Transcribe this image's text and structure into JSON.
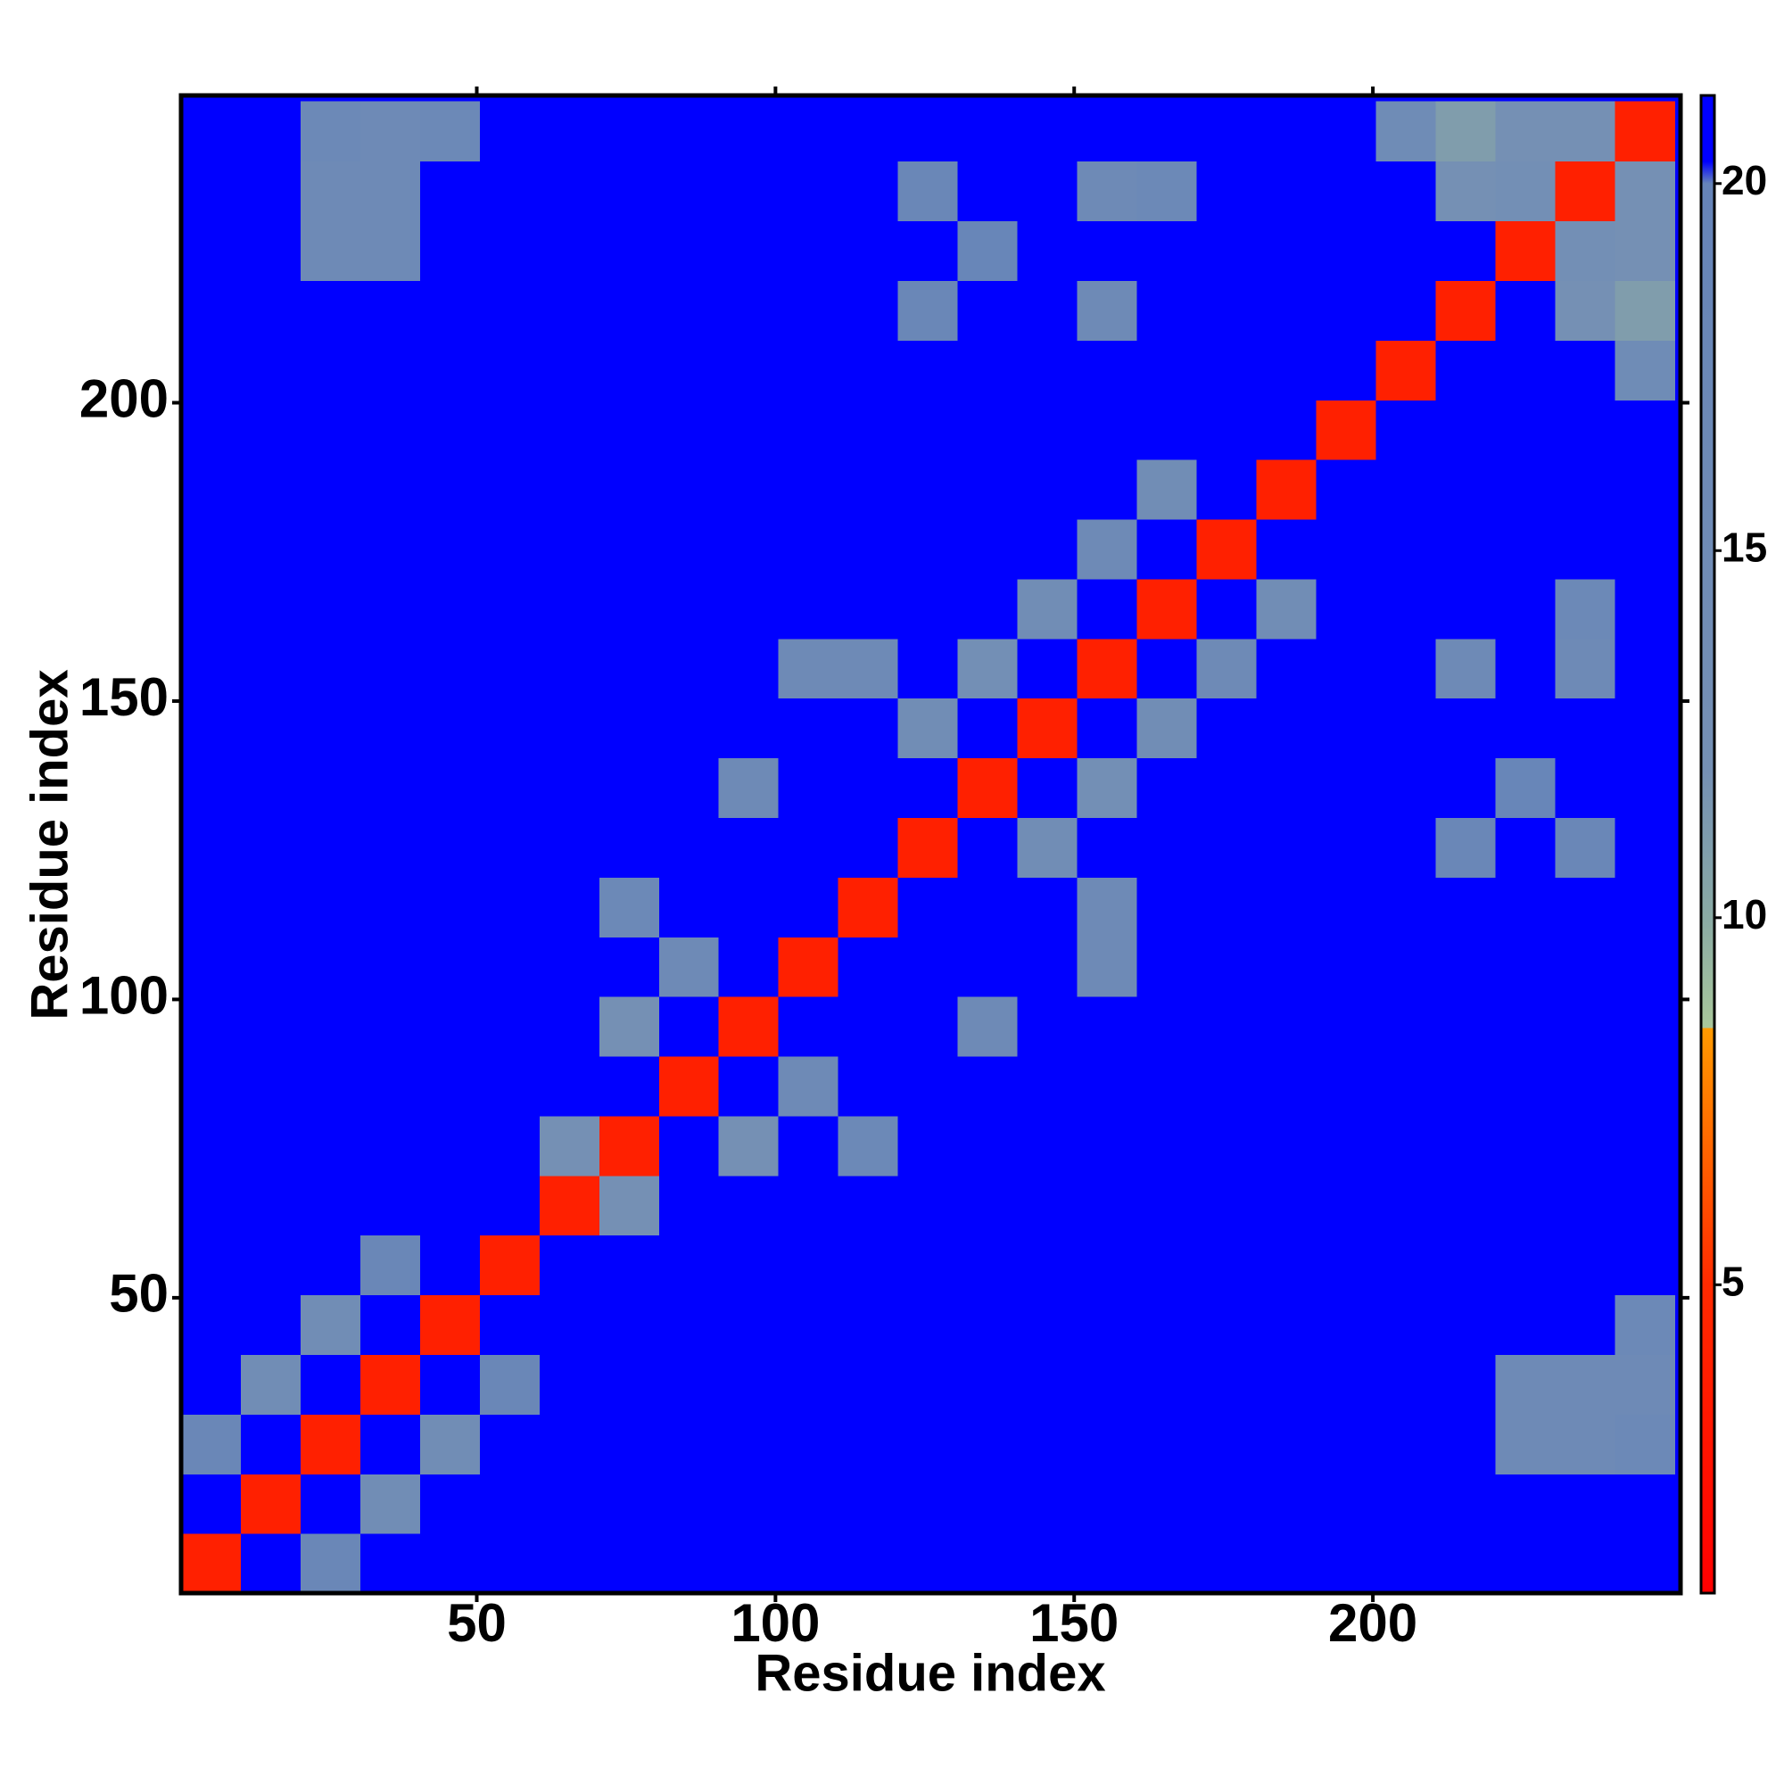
{
  "chart_data": {
    "type": "heatmap",
    "xlabel": "Residue index",
    "ylabel": "Residue index",
    "x": [
      5.5,
      15.5,
      25.5,
      35.5,
      45.5,
      55.5,
      65.5,
      75.5,
      85.5,
      95.5,
      105.5,
      115.5,
      125.5,
      135.5,
      145.5,
      155.5,
      165.5,
      175.5,
      185.5,
      195.5,
      205.5,
      215.5,
      225.5,
      235.5,
      245.5
    ],
    "y": [
      5.5,
      15.5,
      25.5,
      35.5,
      45.5,
      55.5,
      65.5,
      75.5,
      85.5,
      95.5,
      105.5,
      115.5,
      125.5,
      135.5,
      145.5,
      155.5,
      165.5,
      175.5,
      185.5,
      195.5,
      205.5,
      215.5,
      225.5,
      235.5,
      245.5
    ],
    "z": [
      [
        4,
        21,
        18,
        21,
        21,
        21,
        21,
        21,
        21,
        21,
        21,
        21,
        21,
        21,
        21,
        21,
        21,
        21,
        21,
        21,
        21,
        21,
        21,
        21,
        21
      ],
      [
        21,
        4,
        21,
        14,
        21,
        21,
        21,
        21,
        21,
        21,
        21,
        21,
        21,
        21,
        21,
        21,
        21,
        21,
        21,
        21,
        21,
        21,
        21,
        21,
        21
      ],
      [
        18,
        21,
        4,
        21,
        14,
        21,
        21,
        21,
        21,
        21,
        21,
        21,
        21,
        21,
        21,
        21,
        21,
        21,
        21,
        21,
        21,
        21,
        16,
        16,
        17
      ],
      [
        21,
        14,
        21,
        4,
        21,
        18,
        21,
        21,
        21,
        21,
        21,
        21,
        21,
        21,
        21,
        21,
        21,
        21,
        21,
        21,
        21,
        21,
        16,
        16,
        16
      ],
      [
        21,
        21,
        14,
        21,
        4,
        21,
        21,
        21,
        21,
        21,
        21,
        21,
        21,
        21,
        21,
        21,
        21,
        21,
        21,
        21,
        21,
        21,
        21,
        21,
        17
      ],
      [
        21,
        21,
        21,
        18,
        21,
        4,
        21,
        21,
        21,
        21,
        21,
        21,
        21,
        21,
        21,
        21,
        21,
        21,
        21,
        21,
        21,
        21,
        21,
        21,
        21
      ],
      [
        21,
        21,
        21,
        21,
        21,
        21,
        4,
        12,
        21,
        21,
        21,
        21,
        21,
        21,
        21,
        21,
        21,
        21,
        21,
        21,
        21,
        21,
        21,
        21,
        21
      ],
      [
        21,
        21,
        21,
        21,
        21,
        21,
        12,
        4,
        21,
        12,
        21,
        17,
        21,
        21,
        21,
        21,
        21,
        21,
        21,
        21,
        21,
        21,
        21,
        21,
        21
      ],
      [
        21,
        21,
        21,
        21,
        21,
        21,
        21,
        21,
        4,
        21,
        16,
        21,
        21,
        21,
        21,
        21,
        21,
        21,
        21,
        21,
        21,
        21,
        21,
        21,
        21
      ],
      [
        21,
        21,
        21,
        21,
        21,
        21,
        21,
        12,
        21,
        4,
        21,
        21,
        21,
        16,
        21,
        21,
        21,
        21,
        21,
        21,
        21,
        21,
        21,
        21,
        21
      ],
      [
        21,
        21,
        21,
        21,
        21,
        21,
        21,
        21,
        16,
        21,
        4,
        21,
        21,
        21,
        21,
        16,
        21,
        21,
        21,
        21,
        21,
        21,
        21,
        21,
        21
      ],
      [
        21,
        21,
        21,
        21,
        21,
        21,
        21,
        17,
        21,
        21,
        21,
        4,
        21,
        21,
        21,
        16,
        21,
        21,
        21,
        21,
        21,
        21,
        21,
        21,
        21
      ],
      [
        21,
        21,
        21,
        21,
        21,
        21,
        21,
        21,
        21,
        21,
        21,
        21,
        4,
        21,
        14,
        21,
        21,
        21,
        21,
        21,
        21,
        18,
        21,
        18,
        21
      ],
      [
        21,
        21,
        21,
        21,
        21,
        21,
        21,
        21,
        21,
        16,
        21,
        21,
        21,
        4,
        21,
        13,
        21,
        21,
        21,
        21,
        21,
        21,
        19,
        21,
        21
      ],
      [
        21,
        21,
        21,
        21,
        21,
        21,
        21,
        21,
        21,
        21,
        21,
        21,
        14,
        21,
        4,
        21,
        14,
        21,
        21,
        21,
        21,
        21,
        21,
        21,
        21
      ],
      [
        21,
        21,
        21,
        21,
        21,
        21,
        21,
        21,
        21,
        21,
        16,
        16,
        21,
        13,
        21,
        4,
        21,
        16,
        21,
        21,
        21,
        16,
        21,
        16,
        21
      ],
      [
        21,
        21,
        21,
        21,
        21,
        21,
        21,
        21,
        21,
        21,
        21,
        21,
        21,
        21,
        14,
        21,
        4,
        21,
        14,
        21,
        21,
        21,
        21,
        17,
        21
      ],
      [
        21,
        21,
        21,
        21,
        21,
        21,
        21,
        21,
        21,
        21,
        21,
        21,
        21,
        21,
        21,
        16,
        21,
        4,
        21,
        21,
        21,
        21,
        21,
        21,
        21
      ],
      [
        21,
        21,
        21,
        21,
        21,
        21,
        21,
        21,
        21,
        21,
        21,
        21,
        21,
        21,
        21,
        21,
        14,
        21,
        4,
        21,
        21,
        21,
        21,
        21,
        21
      ],
      [
        21,
        21,
        21,
        21,
        21,
        21,
        21,
        21,
        21,
        21,
        21,
        21,
        21,
        21,
        21,
        21,
        21,
        21,
        21,
        4,
        21,
        21,
        21,
        21,
        21
      ],
      [
        21,
        21,
        21,
        21,
        21,
        21,
        21,
        21,
        21,
        21,
        21,
        21,
        21,
        21,
        21,
        21,
        21,
        21,
        21,
        21,
        4,
        21,
        21,
        21,
        15
      ],
      [
        21,
        21,
        21,
        21,
        21,
        21,
        21,
        21,
        21,
        21,
        21,
        21,
        18,
        21,
        21,
        16,
        21,
        21,
        21,
        21,
        21,
        4,
        21,
        12,
        11
      ],
      [
        21,
        21,
        16,
        16,
        21,
        21,
        21,
        21,
        21,
        21,
        21,
        21,
        21,
        19,
        21,
        21,
        21,
        21,
        21,
        21,
        21,
        21,
        4,
        13,
        12
      ],
      [
        21,
        21,
        16,
        16,
        21,
        21,
        21,
        21,
        21,
        21,
        21,
        21,
        18,
        21,
        21,
        16,
        17,
        21,
        21,
        21,
        21,
        12,
        13,
        4,
        12
      ],
      [
        21,
        21,
        17,
        16,
        17,
        21,
        21,
        21,
        21,
        21,
        21,
        21,
        21,
        21,
        21,
        21,
        21,
        21,
        21,
        21,
        15,
        11,
        12,
        12,
        4
      ]
    ],
    "xlim": [
      0.5,
      251.5
    ],
    "ylim": [
      0.5,
      251.5
    ],
    "xticks": [
      50,
      100,
      150,
      200
    ],
    "yticks": [
      50,
      100,
      150,
      200
    ],
    "zlim": [
      0.8,
      21.2
    ],
    "zticks": [
      5,
      10,
      15,
      20
    ],
    "colorscale": [
      [
        0.8,
        "#ff0000"
      ],
      [
        5,
        "#ff2a00"
      ],
      [
        8.5,
        "#ff9a00"
      ],
      [
        8.5,
        "#a9c79b"
      ],
      [
        10,
        "#8aaaa4"
      ],
      [
        12,
        "#7590b4"
      ],
      [
        20,
        "#6684b8"
      ],
      [
        20.3,
        "#0000ff"
      ],
      [
        21.2,
        "#0000ff"
      ]
    ]
  }
}
